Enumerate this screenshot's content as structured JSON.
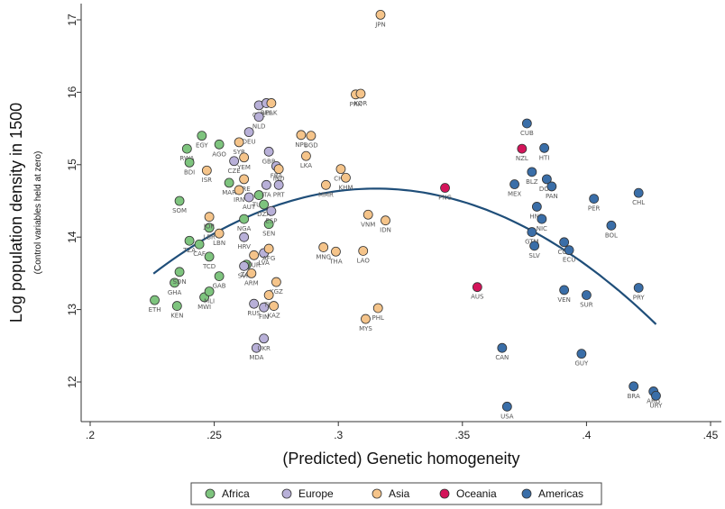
{
  "chart_data": {
    "type": "scatter",
    "title": "",
    "xlabel": "(Predicted) Genetic homogeneity",
    "ylabel": "Log population density in 1500",
    "ylabel_note": "(Control variables held at zero)",
    "xlim": [
      0.2,
      0.45
    ],
    "ylim": [
      11.6,
      17.2
    ],
    "x_ticks": [
      ".2",
      ".25",
      ".3",
      ".35",
      ".4",
      ".45"
    ],
    "x_tick_values": [
      0.2,
      0.25,
      0.3,
      0.35,
      0.4,
      0.45
    ],
    "y_ticks": [
      "12",
      "13",
      "14",
      "15",
      "16",
      "17"
    ],
    "y_tick_values": [
      12,
      13,
      14,
      15,
      16,
      17
    ],
    "grid": false,
    "legend_position": "bottom",
    "colors": {
      "Africa": "#7ec47e",
      "Europe": "#b8b0d8",
      "Asia": "#f5c48a",
      "Oceania": "#d4145a",
      "Americas": "#3a6ea8",
      "fit": "#1f4e79"
    },
    "fit_curve": {
      "x_range": [
        0.2255,
        0.428
      ],
      "y_at_start": 13.45,
      "peak_x": 0.315,
      "peak_y": 14.67,
      "y_at_end": 12.87
    },
    "series": [
      {
        "name": "Africa",
        "points": [
          {
            "x": 0.226,
            "y": 13.13,
            "label": "ETH"
          },
          {
            "x": 0.235,
            "y": 13.05,
            "label": "KEN"
          },
          {
            "x": 0.234,
            "y": 13.37,
            "label": "GHA"
          },
          {
            "x": 0.236,
            "y": 13.52,
            "label": "SDN"
          },
          {
            "x": 0.236,
            "y": 14.5,
            "label": "SOM"
          },
          {
            "x": 0.24,
            "y": 13.95,
            "label": "TZA"
          },
          {
            "x": 0.244,
            "y": 13.9,
            "label": "CAF"
          },
          {
            "x": 0.239,
            "y": 15.22,
            "label": "RWA"
          },
          {
            "x": 0.24,
            "y": 15.03,
            "label": "BDI"
          },
          {
            "x": 0.245,
            "y": 15.4,
            "label": "EGY"
          },
          {
            "x": 0.252,
            "y": 15.28,
            "label": "AGO"
          },
          {
            "x": 0.246,
            "y": 13.17,
            "label": "MWI"
          },
          {
            "x": 0.248,
            "y": 13.25,
            "label": "MLI"
          },
          {
            "x": 0.248,
            "y": 13.73,
            "label": "TCD"
          },
          {
            "x": 0.248,
            "y": 14.13,
            "label": "LBR"
          },
          {
            "x": 0.252,
            "y": 13.46,
            "label": "GAB"
          },
          {
            "x": 0.256,
            "y": 14.75,
            "label": "MAR"
          },
          {
            "x": 0.262,
            "y": 14.25,
            "label": "NGA"
          },
          {
            "x": 0.268,
            "y": 14.58,
            "label": "TUN"
          },
          {
            "x": 0.27,
            "y": 14.45,
            "label": "DZA"
          },
          {
            "x": 0.272,
            "y": 14.18,
            "label": "SEN"
          },
          {
            "x": 0.263,
            "y": 13.62,
            "label": "ZAF"
          }
        ]
      },
      {
        "name": "Europe",
        "points": [
          {
            "x": 0.267,
            "y": 12.47,
            "label": "MDA"
          },
          {
            "x": 0.27,
            "y": 12.6,
            "label": "UKR"
          },
          {
            "x": 0.266,
            "y": 13.08,
            "label": "RUS"
          },
          {
            "x": 0.27,
            "y": 13.03,
            "label": "FIN"
          },
          {
            "x": 0.268,
            "y": 15.82,
            "label": "CHE"
          },
          {
            "x": 0.271,
            "y": 15.85,
            "label": "BEL"
          },
          {
            "x": 0.268,
            "y": 15.66,
            "label": "NLD"
          },
          {
            "x": 0.264,
            "y": 15.45,
            "label": "DEU"
          },
          {
            "x": 0.258,
            "y": 15.05,
            "label": "CZE"
          },
          {
            "x": 0.272,
            "y": 15.18,
            "label": "GBR"
          },
          {
            "x": 0.275,
            "y": 14.98,
            "label": "FRA"
          },
          {
            "x": 0.271,
            "y": 14.72,
            "label": "ITA"
          },
          {
            "x": 0.276,
            "y": 14.72,
            "label": "PRT"
          },
          {
            "x": 0.273,
            "y": 14.36,
            "label": "ESP"
          },
          {
            "x": 0.27,
            "y": 13.78,
            "label": "LVA"
          },
          {
            "x": 0.262,
            "y": 13.6,
            "label": "SVK"
          },
          {
            "x": 0.262,
            "y": 14.0,
            "label": "HRV"
          },
          {
            "x": 0.264,
            "y": 14.55,
            "label": "AUT"
          }
        ]
      },
      {
        "name": "Asia",
        "points": [
          {
            "x": 0.317,
            "y": 17.07,
            "label": "JPN"
          },
          {
            "x": 0.307,
            "y": 15.97,
            "label": "PRK"
          },
          {
            "x": 0.309,
            "y": 15.98,
            "label": "KOR"
          },
          {
            "x": 0.273,
            "y": 15.85,
            "label": "PAK"
          },
          {
            "x": 0.285,
            "y": 15.41,
            "label": "NPL"
          },
          {
            "x": 0.289,
            "y": 15.4,
            "label": "BGD"
          },
          {
            "x": 0.287,
            "y": 15.12,
            "label": "LKA"
          },
          {
            "x": 0.276,
            "y": 14.94,
            "label": "IND"
          },
          {
            "x": 0.26,
            "y": 15.31,
            "label": "SYR"
          },
          {
            "x": 0.262,
            "y": 15.1,
            "label": "YEM"
          },
          {
            "x": 0.247,
            "y": 14.92,
            "label": "ISR"
          },
          {
            "x": 0.262,
            "y": 14.8,
            "label": "ARE"
          },
          {
            "x": 0.301,
            "y": 14.94,
            "label": "CHN"
          },
          {
            "x": 0.303,
            "y": 14.82,
            "label": "KHM"
          },
          {
            "x": 0.295,
            "y": 14.72,
            "label": "MMR"
          },
          {
            "x": 0.312,
            "y": 14.31,
            "label": "VNM"
          },
          {
            "x": 0.319,
            "y": 14.23,
            "label": "IDN"
          },
          {
            "x": 0.294,
            "y": 13.86,
            "label": "MNG"
          },
          {
            "x": 0.299,
            "y": 13.8,
            "label": "THA"
          },
          {
            "x": 0.31,
            "y": 13.81,
            "label": "LAO"
          },
          {
            "x": 0.316,
            "y": 13.02,
            "label": "PHL"
          },
          {
            "x": 0.311,
            "y": 12.87,
            "label": "MYS"
          },
          {
            "x": 0.275,
            "y": 13.38,
            "label": "KGZ"
          },
          {
            "x": 0.272,
            "y": 13.2,
            "label": "TJK"
          },
          {
            "x": 0.274,
            "y": 13.05,
            "label": "KAZ"
          },
          {
            "x": 0.272,
            "y": 13.84,
            "label": "AFG"
          },
          {
            "x": 0.26,
            "y": 14.65,
            "label": "IRN"
          },
          {
            "x": 0.248,
            "y": 14.28,
            "label": "JOR"
          },
          {
            "x": 0.252,
            "y": 14.05,
            "label": "LBN"
          },
          {
            "x": 0.266,
            "y": 13.75,
            "label": "TUR"
          },
          {
            "x": 0.265,
            "y": 13.5,
            "label": "ARM"
          }
        ]
      },
      {
        "name": "Oceania",
        "points": [
          {
            "x": 0.343,
            "y": 14.68,
            "label": "PNG"
          },
          {
            "x": 0.356,
            "y": 13.31,
            "label": "AUS"
          },
          {
            "x": 0.374,
            "y": 15.22,
            "label": "NZL"
          }
        ]
      },
      {
        "name": "Americas",
        "points": [
          {
            "x": 0.376,
            "y": 15.57,
            "label": "CUB"
          },
          {
            "x": 0.383,
            "y": 15.23,
            "label": "HTI"
          },
          {
            "x": 0.378,
            "y": 14.9,
            "label": "BLZ"
          },
          {
            "x": 0.371,
            "y": 14.73,
            "label": "MEX"
          },
          {
            "x": 0.384,
            "y": 14.8,
            "label": "DOM"
          },
          {
            "x": 0.386,
            "y": 14.7,
            "label": "PAN"
          },
          {
            "x": 0.403,
            "y": 14.53,
            "label": "PER"
          },
          {
            "x": 0.421,
            "y": 14.61,
            "label": "CHL"
          },
          {
            "x": 0.38,
            "y": 14.42,
            "label": "HND"
          },
          {
            "x": 0.382,
            "y": 14.25,
            "label": "NIC"
          },
          {
            "x": 0.41,
            "y": 14.16,
            "label": "BOL"
          },
          {
            "x": 0.378,
            "y": 14.07,
            "label": "GTM"
          },
          {
            "x": 0.379,
            "y": 13.88,
            "label": "SLV"
          },
          {
            "x": 0.391,
            "y": 13.93,
            "label": "COL"
          },
          {
            "x": 0.393,
            "y": 13.82,
            "label": "ECU"
          },
          {
            "x": 0.391,
            "y": 13.27,
            "label": "VEN"
          },
          {
            "x": 0.4,
            "y": 13.2,
            "label": "SUR"
          },
          {
            "x": 0.421,
            "y": 13.3,
            "label": "PRY"
          },
          {
            "x": 0.366,
            "y": 12.47,
            "label": "CAN"
          },
          {
            "x": 0.398,
            "y": 12.39,
            "label": "GUY"
          },
          {
            "x": 0.419,
            "y": 11.94,
            "label": "BRA"
          },
          {
            "x": 0.427,
            "y": 11.87,
            "label": "ARG"
          },
          {
            "x": 0.428,
            "y": 11.81,
            "label": "URY"
          },
          {
            "x": 0.368,
            "y": 11.66,
            "label": "USA"
          }
        ]
      }
    ]
  }
}
